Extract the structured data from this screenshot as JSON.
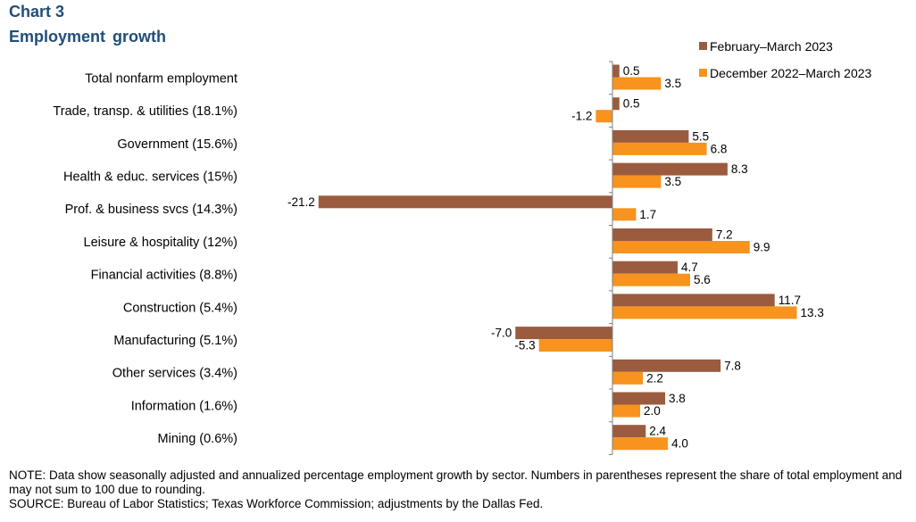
{
  "header": {
    "chart_number": "Chart 3",
    "title": "Employment  growth"
  },
  "chart_data": {
    "type": "bar",
    "orientation": "horizontal",
    "title": "Employment  growth",
    "xlabel": "",
    "ylabel": "",
    "xlim": [
      -22,
      14
    ],
    "grid": false,
    "legend_position": "top-right",
    "categories": [
      "Total nonfarm employment",
      "Trade, transp. & utilities (18.1%)",
      "Government (15.6%)",
      "Health & educ. services (15%)",
      "Prof. & business svcs (14.3%)",
      "Leisure & hospitality (12%)",
      "Financial activities (8.8%)",
      "Construction (5.4%)",
      "Manufacturing (5.1%)",
      "Other services (3.4%)",
      "Information (1.6%)",
      "Mining (0.6%)"
    ],
    "series": [
      {
        "name": "February–March  2023",
        "color": "#9b5b3e",
        "values": [
          0.5,
          0.5,
          5.5,
          8.3,
          -21.2,
          7.2,
          4.7,
          11.7,
          -7.0,
          7.8,
          3.8,
          2.4
        ],
        "labels": [
          "0.5",
          "0.5",
          "5.5",
          "8.3",
          "-21.2",
          "7.2",
          "4.7",
          "11.7",
          "-7.0",
          "7.8",
          "3.8",
          "2.4"
        ]
      },
      {
        "name": "December  2022–March  2023",
        "color": "#f7931e",
        "values": [
          3.5,
          -1.2,
          6.8,
          3.5,
          1.7,
          9.9,
          5.6,
          13.3,
          -5.3,
          2.2,
          2.0,
          4.0
        ],
        "labels": [
          "3.5",
          "-1.2",
          "6.8",
          "3.5",
          "1.7",
          "9.9",
          "5.6",
          "13.3",
          "-5.3",
          "2.2",
          "2.0",
          "4.0"
        ]
      }
    ]
  },
  "footer": {
    "note": "NOTE: Data show seasonally adjusted and annualized percentage employment growth by sector. Numbers in parentheses represent the share of total employment and may not sum to 100 due to rounding.",
    "source": "SOURCE: Bureau of Labor Statistics; Texas Workforce Commission; adjustments by the Dallas Fed."
  }
}
